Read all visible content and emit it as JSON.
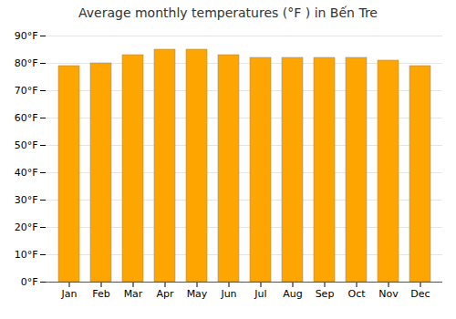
{
  "chart_data": {
    "type": "bar",
    "title": "Average monthly temperatures (°F ) in Bến Tre",
    "categories": [
      "Jan",
      "Feb",
      "Mar",
      "Apr",
      "May",
      "Jun",
      "Jul",
      "Aug",
      "Sep",
      "Oct",
      "Nov",
      "Dec"
    ],
    "values": [
      79,
      80,
      83,
      85,
      85,
      83,
      82,
      82,
      82,
      82,
      81,
      79
    ],
    "color": "#FFA500",
    "ylim": [
      0,
      90
    ],
    "yticks": [
      {
        "value": 0,
        "label": "0°F"
      },
      {
        "value": 10,
        "label": "10°F"
      },
      {
        "value": 20,
        "label": "20°F"
      },
      {
        "value": 30,
        "label": "30°F"
      },
      {
        "value": 40,
        "label": "40°F"
      },
      {
        "value": 50,
        "label": "50°F"
      },
      {
        "value": 60,
        "label": "60°F"
      },
      {
        "value": 70,
        "label": "70°F"
      },
      {
        "value": 80,
        "label": "80°F"
      },
      {
        "value": 90,
        "label": "90°F"
      }
    ],
    "grid": true
  }
}
